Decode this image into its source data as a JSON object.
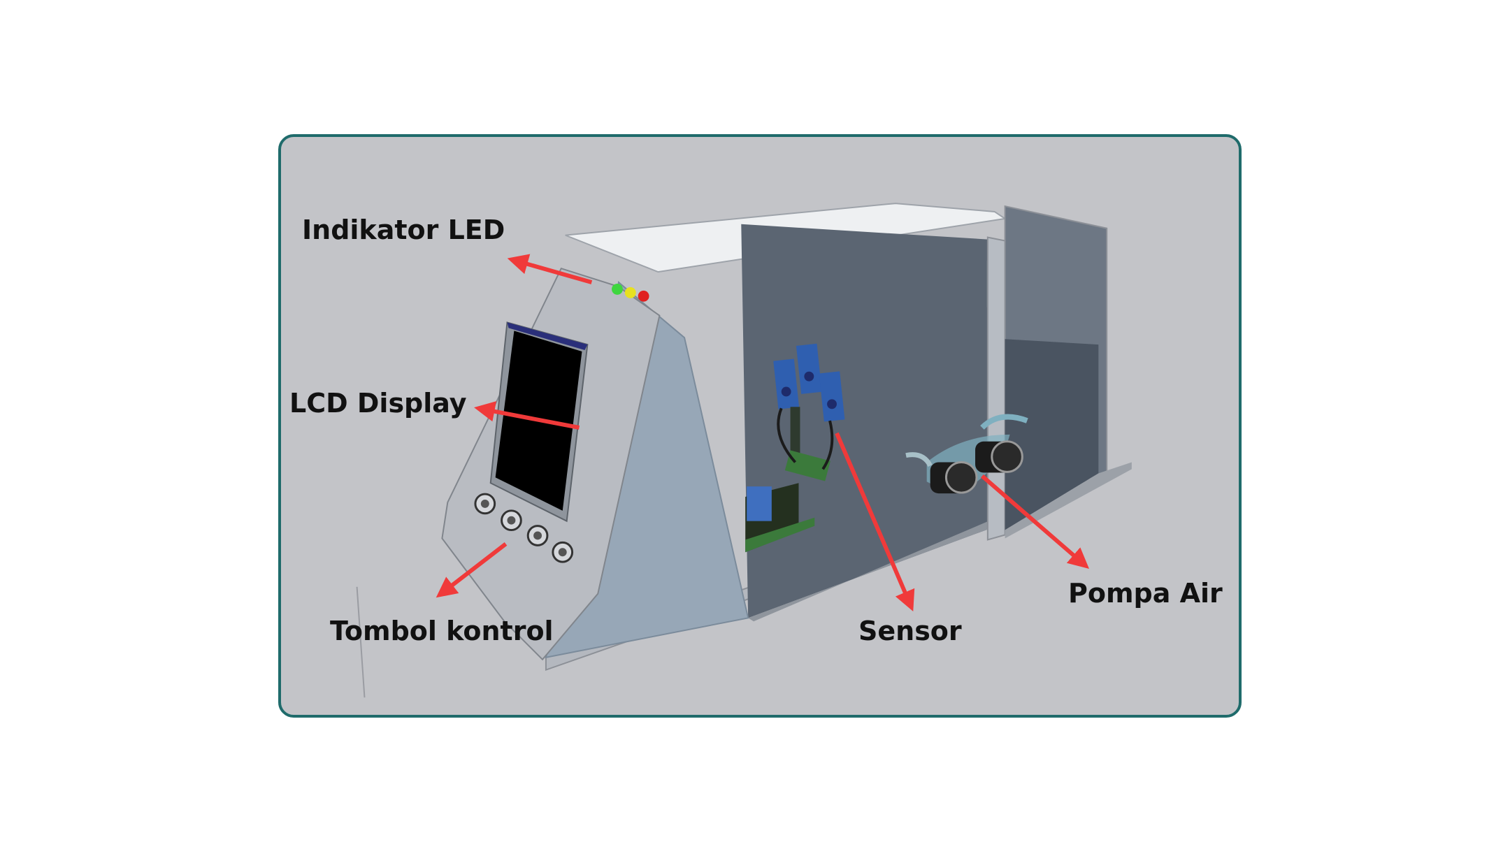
{
  "figure": {
    "labels": {
      "led": "Indikator LED",
      "lcd": "LCD Display",
      "buttons": "Tombol kontrol",
      "sensor": "Sensor",
      "pump": "Pompa Air"
    }
  },
  "colors": {
    "frame": "#1f6b6b",
    "background": "#c3c4c8",
    "arrow": "#f03a3a",
    "led_green": "#3fd63f",
    "led_yellow": "#e8e020",
    "led_red": "#e02020",
    "lcd_screen": "#000000",
    "panel": "#b9bcc2",
    "sensor_board": "#2f5fb0"
  },
  "icons": [
    "led-indicator-icon",
    "lcd-display-icon",
    "control-button-icon",
    "sensor-module-icon",
    "water-pump-icon"
  ]
}
